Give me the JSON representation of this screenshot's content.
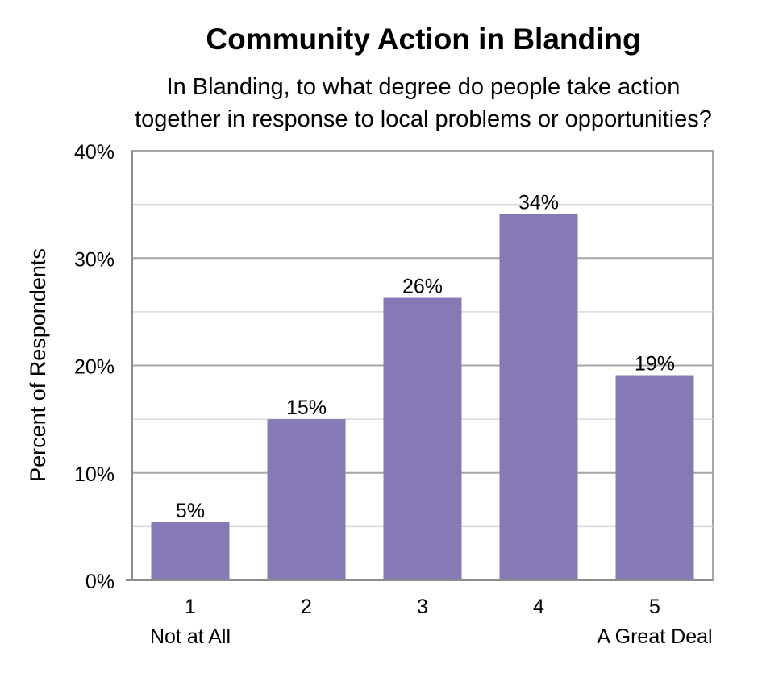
{
  "chart_data": {
    "type": "bar",
    "title": "Community Action in Blanding",
    "subtitle_lines": [
      "In Blanding, to what degree do people take action",
      "together in response to local problems or opportunities?"
    ],
    "ylabel": "Percent of Respondents",
    "categories": [
      "1",
      "2",
      "3",
      "4",
      "5"
    ],
    "category_sublabels": [
      "Not at All",
      "",
      "",
      "",
      "A Great Deal"
    ],
    "values": [
      5.4,
      15.0,
      26.3,
      34.1,
      19.1
    ],
    "value_labels": [
      "5%",
      "15%",
      "26%",
      "34%",
      "19%"
    ],
    "ylim": [
      0,
      40
    ],
    "y_ticks": [
      0,
      10,
      20,
      30,
      40
    ],
    "y_tick_labels": [
      "0%",
      "10%",
      "20%",
      "30%",
      "40%"
    ],
    "minor_gridlines": [
      5,
      15,
      25,
      35
    ],
    "grid": true,
    "legend": "none",
    "colors": {
      "bar": "#8679B5",
      "grid_major": "#a6a6a6",
      "grid_minor": "#d9d9d9"
    }
  }
}
